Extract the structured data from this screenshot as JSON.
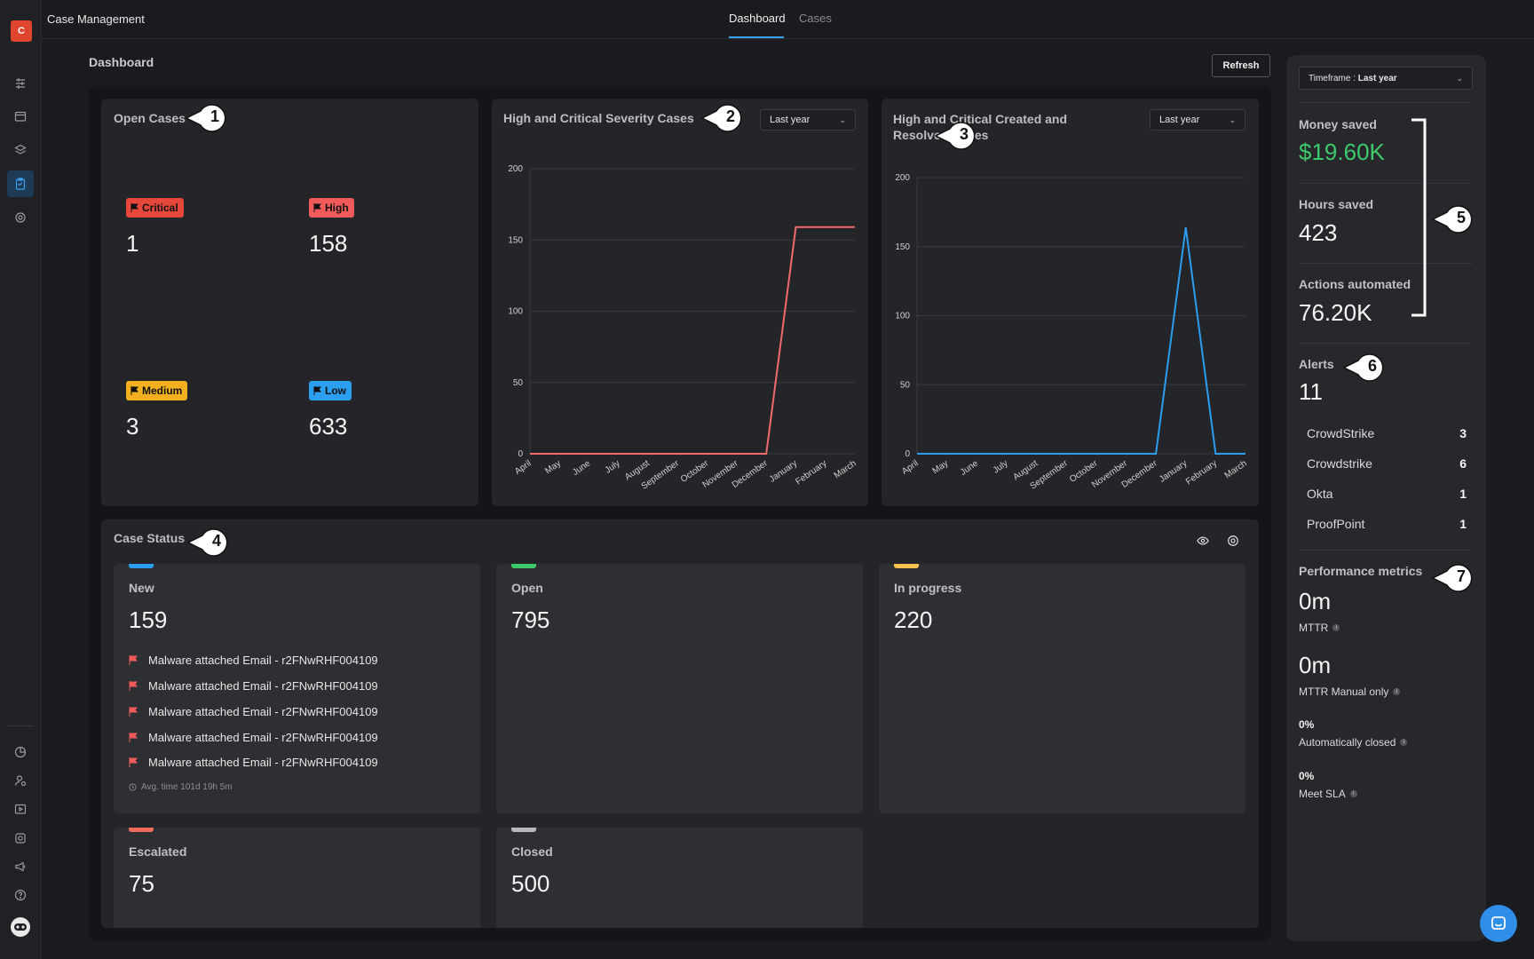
{
  "app": {
    "logo_letter": "C",
    "title": "Case Management",
    "tabs": [
      {
        "label": "Dashboard",
        "active": true
      },
      {
        "label": "Cases",
        "active": false
      }
    ]
  },
  "page": {
    "title": "Dashboard",
    "refresh_label": "Refresh"
  },
  "open_cases": {
    "title": "Open Cases",
    "items": [
      {
        "label": "Critical",
        "count": "1",
        "color": "#e5483a"
      },
      {
        "label": "High",
        "count": "158",
        "color": "#f05a5a"
      },
      {
        "label": "Medium",
        "count": "3",
        "color": "#f2b01e"
      },
      {
        "label": "Low",
        "count": "633",
        "color": "#2b9ef0"
      }
    ]
  },
  "severity_chart": {
    "title": "High and Critical Severity Cases",
    "dropdown": "Last year",
    "chart_data": {
      "type": "line",
      "categories": [
        "April",
        "May",
        "June",
        "July",
        "August",
        "September",
        "October",
        "November",
        "December",
        "January",
        "February",
        "March"
      ],
      "series": [
        {
          "values": [
            0,
            0,
            0,
            0,
            0,
            0,
            0,
            0,
            0,
            159,
            159,
            159
          ],
          "color": "#f06a6a"
        }
      ],
      "ylim": [
        0,
        200
      ],
      "yticks": [
        "0",
        "50",
        "100",
        "150",
        "200"
      ],
      "grid": true
    }
  },
  "created_resolved_chart": {
    "title": "High and Critical Created and Resolved Cases",
    "dropdown": "Last year",
    "chart_data": {
      "type": "line",
      "categories": [
        "April",
        "May",
        "June",
        "July",
        "August",
        "September",
        "October",
        "November",
        "December",
        "January",
        "February",
        "March"
      ],
      "series": [
        {
          "values": [
            0,
            0,
            0,
            0,
            0,
            0,
            0,
            0,
            0,
            164,
            0,
            0
          ],
          "color": "#2b9ef0"
        }
      ],
      "ylim": [
        0,
        200
      ],
      "yticks": [
        "0",
        "50",
        "100",
        "150",
        "200"
      ],
      "grid": true
    }
  },
  "case_status": {
    "title": "Case Status",
    "statuses": [
      {
        "label": "New",
        "count": "159",
        "color": "#2b9ef0"
      },
      {
        "label": "Open",
        "count": "795",
        "color": "#3ec96a"
      },
      {
        "label": "In progress",
        "count": "220",
        "color": "#f5c44e"
      },
      {
        "label": "Escalated",
        "count": "75",
        "color": "#f06a5a"
      },
      {
        "label": "Closed",
        "count": "500",
        "color": "#b8b9bd"
      }
    ],
    "new_cases": [
      "Malware attached Email - r2FNwRHF004109",
      "Malware attached Email - r2FNwRHF004109",
      "Malware attached Email - r2FNwRHF004109",
      "Malware attached Email - r2FNwRHF004109",
      "Malware attached Email - r2FNwRHF004109"
    ],
    "avg_time": "Avg. time 101d 19h 5m"
  },
  "right_panel": {
    "timeframe_prefix": "Timeframe : ",
    "timeframe_value": "Last year",
    "money_saved_label": "Money saved",
    "money_saved_value": "$19.60K",
    "money_color": "#3ec96a",
    "hours_saved_label": "Hours saved",
    "hours_saved_value": "423",
    "actions_label": "Actions automated",
    "actions_value": "76.20K",
    "alerts_label": "Alerts",
    "alerts_value": "11",
    "alert_sources": [
      {
        "name": "CrowdStrike",
        "count": "3"
      },
      {
        "name": "Crowdstrike",
        "count": "6"
      },
      {
        "name": "Okta",
        "count": "1"
      },
      {
        "name": "ProofPoint",
        "count": "1"
      }
    ],
    "perf_label": "Performance metrics",
    "mttr_value": "0m",
    "mttr_label": "MTTR",
    "mttr_manual_value": "0m",
    "mttr_manual_label": "MTTR Manual only",
    "auto_closed_value": "0%",
    "auto_closed_label": "Automatically closed",
    "sla_value": "0%",
    "sla_label": "Meet SLA"
  },
  "callouts": [
    "1",
    "2",
    "3",
    "4",
    "5",
    "6",
    "7"
  ]
}
